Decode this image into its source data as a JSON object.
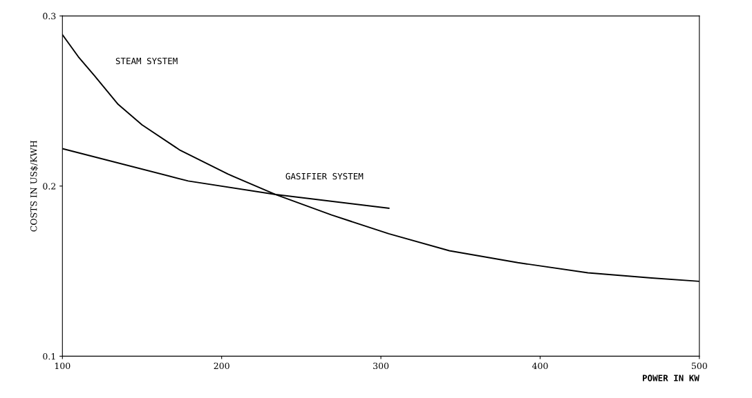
{
  "chart_data": {
    "type": "line",
    "xlabel": "POWER IN KW",
    "ylabel": "COSTS IN US$/KWH",
    "xlim": [
      100,
      500
    ],
    "xticks": [
      100,
      200,
      300,
      400,
      500
    ],
    "ylim": [
      0.1,
      0.3
    ],
    "yticks": [
      0.1,
      0.2,
      0.3
    ],
    "grid": false,
    "legend": false,
    "marker": "none",
    "line_style": "solid",
    "series": [
      {
        "name": "STEAM SYSTEM",
        "color": "#000000",
        "x": [
          100,
          110,
          120,
          135,
          150,
          174,
          204,
          234,
          269,
          305,
          343,
          386,
          430,
          470,
          500
        ],
        "values": [
          0.289,
          0.276,
          0.265,
          0.248,
          0.236,
          0.221,
          0.207,
          0.195,
          0.183,
          0.172,
          0.162,
          0.155,
          0.149,
          0.146,
          0.144
        ]
      },
      {
        "name": "GASIFIER SYSTEM",
        "color": "#000000",
        "x": [
          100,
          179,
          234,
          305
        ],
        "values": [
          0.222,
          0.203,
          0.195,
          0.187
        ]
      }
    ]
  }
}
